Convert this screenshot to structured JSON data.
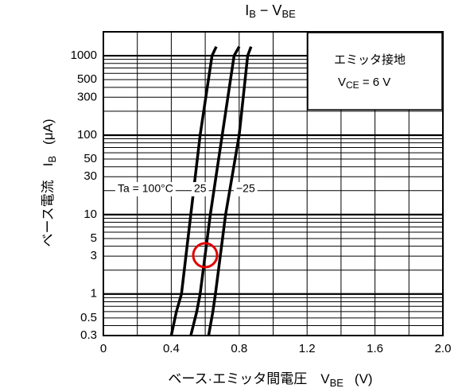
{
  "chart_data": {
    "type": "line",
    "title": {
      "main": "I",
      "main_sub": "B",
      "sep": " − V",
      "sep_sub": "BE"
    },
    "x_label": {
      "text": "ベース·エミッタ間電圧　V",
      "sub": "BE",
      "unit": "(V)"
    },
    "y_label": {
      "text": "ベース電流　I",
      "sub": "B",
      "unit": "(μA)"
    },
    "note": {
      "line1": "エミッタ接地",
      "v": "V",
      "sub": "CE",
      "rest": " = 6 V"
    },
    "log_y": true,
    "xlim": [
      0,
      2.0
    ],
    "xticks": [
      0,
      0.4,
      0.8,
      1.2,
      1.6,
      {
        "value": 2,
        "label": "2.0"
      }
    ],
    "xgrid": [
      0.2,
      0.6,
      1.0,
      1.4,
      1.8
    ],
    "ylim": [
      0.3,
      2000
    ],
    "yticks": [
      0.3,
      0.5,
      1,
      3,
      5,
      10,
      30,
      50,
      100,
      300,
      500,
      1000
    ],
    "ygrid": [
      0.4,
      0.6,
      0.7,
      0.8,
      0.9,
      2,
      4,
      6,
      7,
      8,
      9,
      20,
      40,
      60,
      70,
      80,
      90,
      200,
      400,
      600,
      700,
      800,
      900,
      2000
    ],
    "series": [
      {
        "name": "Ta = 100°C",
        "color": "#000000",
        "x": [
          0.4,
          0.43,
          0.46,
          0.515,
          0.57,
          0.64,
          0.665
        ],
        "values": [
          0.3,
          0.6,
          1,
          10,
          100,
          1000,
          1300
        ]
      },
      {
        "name": "25",
        "color": "#000000",
        "x": [
          0.515,
          0.55,
          0.57,
          0.63,
          0.7,
          0.77,
          0.8
        ],
        "values": [
          0.3,
          0.6,
          1,
          10,
          100,
          1000,
          1300
        ]
      },
      {
        "name": "−25",
        "color": "#000000",
        "x": [
          0.62,
          0.645,
          0.66,
          0.72,
          0.8,
          0.85,
          0.87
        ],
        "values": [
          0.3,
          0.6,
          1,
          10,
          100,
          1000,
          1300
        ]
      }
    ]
  }
}
